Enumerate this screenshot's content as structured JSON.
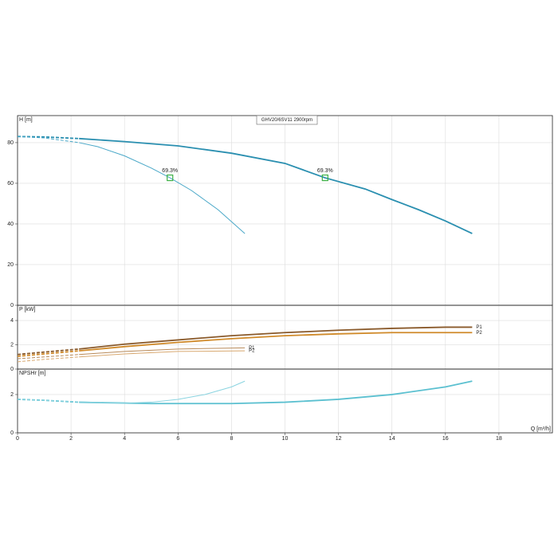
{
  "chart_data": [
    {
      "type": "line",
      "title": "GHV20/6SV11 2900rpm",
      "y_label": "H [m]",
      "xlim": [
        0,
        20
      ],
      "ylim": [
        0,
        93.3
      ],
      "yticks": [
        0,
        20,
        40,
        60,
        80
      ],
      "grid": true,
      "series": [
        {
          "color": "#2a8fb0",
          "thick": true,
          "dashed": true,
          "x": [
            0,
            1,
            2.3
          ],
          "values": [
            83,
            82.8,
            82
          ]
        },
        {
          "color": "#2a8fb0",
          "thick": true,
          "dashed": false,
          "x": [
            2.3,
            4,
            6,
            8,
            10,
            11.5,
            13,
            14,
            15,
            16,
            17
          ],
          "values": [
            82,
            80.5,
            78.4,
            74.8,
            69.8,
            62.7,
            57.2,
            52,
            47,
            41.5,
            35.3
          ]
        },
        {
          "color": "#4aa8c8",
          "thick": false,
          "dashed": true,
          "x": [
            0,
            1,
            2.3
          ],
          "values": [
            83,
            82.3,
            80
          ]
        },
        {
          "color": "#4aa8c8",
          "thick": false,
          "dashed": false,
          "x": [
            2.3,
            3,
            4,
            5,
            5.7,
            6.5,
            7.5,
            8.5
          ],
          "values": [
            80,
            78,
            73.5,
            67.5,
            62.7,
            56.5,
            47,
            35.3
          ]
        }
      ],
      "annotations": [
        {
          "text": "69.3%",
          "x": 5.7,
          "y": 62.7
        },
        {
          "text": "69.3%",
          "x": 11.5,
          "y": 62.7
        }
      ],
      "marker_color": "#3cb043"
    },
    {
      "type": "line",
      "y_label": "P [kW]",
      "xlim": [
        0,
        20
      ],
      "ylim": [
        0,
        5.25
      ],
      "yticks": [
        0,
        2,
        4
      ],
      "grid": true,
      "series": [
        {
          "color": "#8a5a2b",
          "thick": true,
          "dashed": true,
          "x": [
            0,
            1,
            2.3
          ],
          "values": [
            1.2,
            1.4,
            1.65
          ]
        },
        {
          "color": "#8a5a2b",
          "thick": true,
          "dashed": false,
          "x": [
            2.3,
            4,
            6,
            8,
            10,
            12,
            14,
            16,
            17
          ],
          "values": [
            1.65,
            2.05,
            2.4,
            2.75,
            3.0,
            3.2,
            3.35,
            3.45,
            3.45
          ]
        },
        {
          "color": "#d08a2a",
          "thick": true,
          "dashed": true,
          "x": [
            0,
            1,
            2.3
          ],
          "values": [
            1.05,
            1.25,
            1.5
          ]
        },
        {
          "color": "#d08a2a",
          "thick": true,
          "dashed": false,
          "x": [
            2.3,
            4,
            6,
            8,
            10,
            12,
            14,
            16,
            17
          ],
          "values": [
            1.5,
            1.85,
            2.2,
            2.5,
            2.75,
            2.9,
            3.0,
            3.0,
            3.0
          ]
        },
        {
          "color": "#b88a5a",
          "thick": false,
          "dashed": true,
          "x": [
            0,
            1,
            2.3
          ],
          "values": [
            0.85,
            1.0,
            1.2
          ]
        },
        {
          "color": "#b88a5a",
          "thick": false,
          "dashed": false,
          "x": [
            2.3,
            4,
            6,
            8.5
          ],
          "values": [
            1.2,
            1.45,
            1.65,
            1.75
          ]
        },
        {
          "color": "#d8a870",
          "thick": false,
          "dashed": true,
          "x": [
            0,
            1,
            2.3
          ],
          "values": [
            0.6,
            0.8,
            1.0
          ]
        },
        {
          "color": "#d8a870",
          "thick": false,
          "dashed": false,
          "x": [
            2.3,
            4,
            6,
            8.5
          ],
          "values": [
            1.0,
            1.25,
            1.45,
            1.5
          ]
        }
      ],
      "annotations": [
        {
          "text": "P1",
          "x": 17,
          "y": 3.45
        },
        {
          "text": "P2",
          "x": 17,
          "y": 3.0
        },
        {
          "text": "P1",
          "x": 8.5,
          "y": 1.75
        },
        {
          "text": "P2",
          "x": 8.5,
          "y": 1.5
        }
      ]
    },
    {
      "type": "line",
      "y_label": "NPSHr [m]",
      "x_label": "Q [m³/h]",
      "xlim": [
        0,
        20
      ],
      "ylim": [
        0,
        3.33
      ],
      "xticks": [
        0,
        2,
        4,
        6,
        8,
        10,
        12,
        14,
        16,
        18
      ],
      "yticks": [
        0,
        2
      ],
      "grid": true,
      "series": [
        {
          "color": "#5bc0d0",
          "thick": true,
          "dashed": true,
          "x": [
            0,
            1,
            2.3
          ],
          "values": [
            1.75,
            1.7,
            1.6
          ]
        },
        {
          "color": "#5bc0d0",
          "thick": true,
          "dashed": false,
          "x": [
            2.3,
            5,
            8,
            10,
            12,
            14,
            16,
            17
          ],
          "values": [
            1.6,
            1.53,
            1.53,
            1.6,
            1.75,
            2.0,
            2.4,
            2.7
          ]
        },
        {
          "color": "#8ad4e0",
          "thick": false,
          "dashed": true,
          "x": [
            0,
            1,
            2.3
          ],
          "values": [
            1.75,
            1.7,
            1.62
          ]
        },
        {
          "color": "#8ad4e0",
          "thick": false,
          "dashed": false,
          "x": [
            2.3,
            4,
            5,
            6,
            7,
            8,
            8.5
          ],
          "values": [
            1.62,
            1.55,
            1.6,
            1.75,
            2.0,
            2.4,
            2.7
          ]
        }
      ]
    }
  ]
}
